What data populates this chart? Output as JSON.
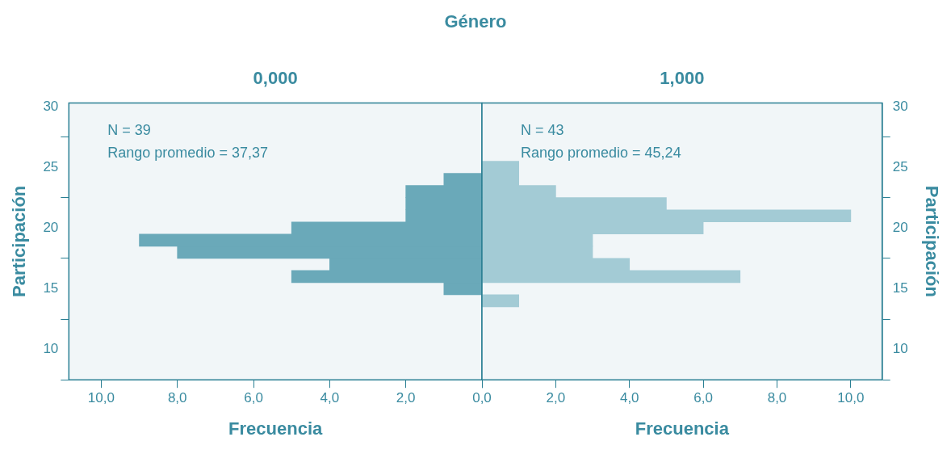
{
  "chart_data": [
    {
      "type": "histogram",
      "title": "Género",
      "subtitle": "0,000",
      "orientation": "horizontal",
      "color": "#6aa9b9",
      "xlabel": "Frecuencia",
      "ylabel": "Participación",
      "bins": [
        13.5,
        14.5,
        15.5,
        16.5,
        17.5,
        18.5,
        19.5,
        20.5,
        21.5,
        22.5,
        23.5,
        24.5,
        25.5
      ],
      "values": [
        0,
        1,
        5,
        4,
        8,
        9,
        5,
        2,
        2,
        2,
        1,
        0
      ],
      "xlim": [
        10.85,
        0
      ],
      "xticks": [
        {
          "value": 10,
          "label": "10,0"
        },
        {
          "value": 8,
          "label": "8,0"
        },
        {
          "value": 6,
          "label": "6,0"
        },
        {
          "value": 4,
          "label": "4,0"
        },
        {
          "value": 2,
          "label": "2,0"
        },
        {
          "value": 0,
          "label": "0,0"
        }
      ],
      "ylim": [
        7.5,
        30.3
      ],
      "yticks": [
        10,
        15,
        20,
        25,
        30
      ],
      "annotations": [
        "N = 39",
        "Rango promedio = 37,37"
      ]
    },
    {
      "type": "histogram",
      "subtitle": "1,000",
      "orientation": "horizontal",
      "color": "#a3cbd5",
      "xlabel": "Frecuencia",
      "ylabel": "Participación",
      "bins": [
        13.5,
        14.5,
        15.5,
        16.5,
        17.5,
        18.5,
        19.5,
        20.5,
        21.5,
        22.5,
        23.5,
        24.5,
        25.5
      ],
      "values": [
        1,
        0,
        7,
        4,
        3,
        3,
        6,
        10,
        5,
        2,
        1,
        1
      ],
      "xlim": [
        0,
        10.85
      ],
      "xticks": [
        {
          "value": 0,
          "label": null
        },
        {
          "value": 2,
          "label": "2,0"
        },
        {
          "value": 4,
          "label": "4,0"
        },
        {
          "value": 6,
          "label": "6,0"
        },
        {
          "value": 8,
          "label": "8,0"
        },
        {
          "value": 10,
          "label": "10,0"
        }
      ],
      "ylim": [
        7.5,
        30.3
      ],
      "yticks": [
        10,
        15,
        20,
        25,
        30
      ],
      "annotations": [
        "N = 43",
        "Rango promedio = 45,24"
      ]
    }
  ]
}
